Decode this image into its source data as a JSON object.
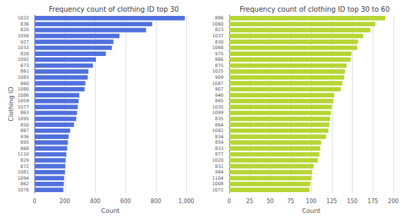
{
  "chart_data": [
    {
      "type": "bar",
      "orientation": "horizontal",
      "title": "Frequency count of clothing ID top 30",
      "xlabel": "Count",
      "ylabel": "Clothing ID",
      "categories": [
        "1022",
        "836",
        "820",
        "1056",
        "927",
        "1033",
        "828",
        "1092",
        "873",
        "861",
        "1083",
        "860",
        "1080",
        "1086",
        "1059",
        "1077",
        "863",
        "1095",
        "850",
        "867",
        "936",
        "895",
        "868",
        "1110",
        "829",
        "872",
        "1081",
        "1094",
        "862",
        "1078"
      ],
      "values": [
        990,
        775,
        735,
        560,
        520,
        510,
        470,
        405,
        385,
        355,
        350,
        335,
        330,
        295,
        290,
        285,
        280,
        275,
        260,
        235,
        225,
        220,
        215,
        210,
        205,
        203,
        200,
        195,
        193,
        190
      ],
      "xlim": [
        0,
        1000
      ],
      "xticks": [
        0,
        200,
        400,
        600,
        800,
        1000
      ],
      "grid": true
    },
    {
      "type": "bar",
      "orientation": "horizontal",
      "title": "Frequency count of clothing ID top 30 to 60",
      "xlabel": "Count",
      "categories": [
        "886",
        "1060",
        "823",
        "1037",
        "830",
        "1068",
        "975",
        "866",
        "875",
        "1025",
        "909",
        "1087",
        "907",
        "940",
        "865",
        "1035",
        "1099",
        "835",
        "864",
        "1082",
        "834",
        "854",
        "833",
        "877",
        "1020",
        "831",
        "984",
        "1104",
        "1008",
        "1072"
      ],
      "values": [
        190,
        178,
        172,
        163,
        157,
        156,
        149,
        148,
        143,
        141,
        140,
        138,
        136,
        128,
        127,
        125,
        124,
        123,
        122,
        121,
        118,
        112,
        111,
        110,
        108,
        103,
        101,
        100,
        99,
        98
      ],
      "xlim": [
        0,
        200
      ],
      "xticks": [
        0,
        25,
        50,
        75,
        100,
        125,
        150,
        175,
        200
      ],
      "grid": true
    }
  ]
}
